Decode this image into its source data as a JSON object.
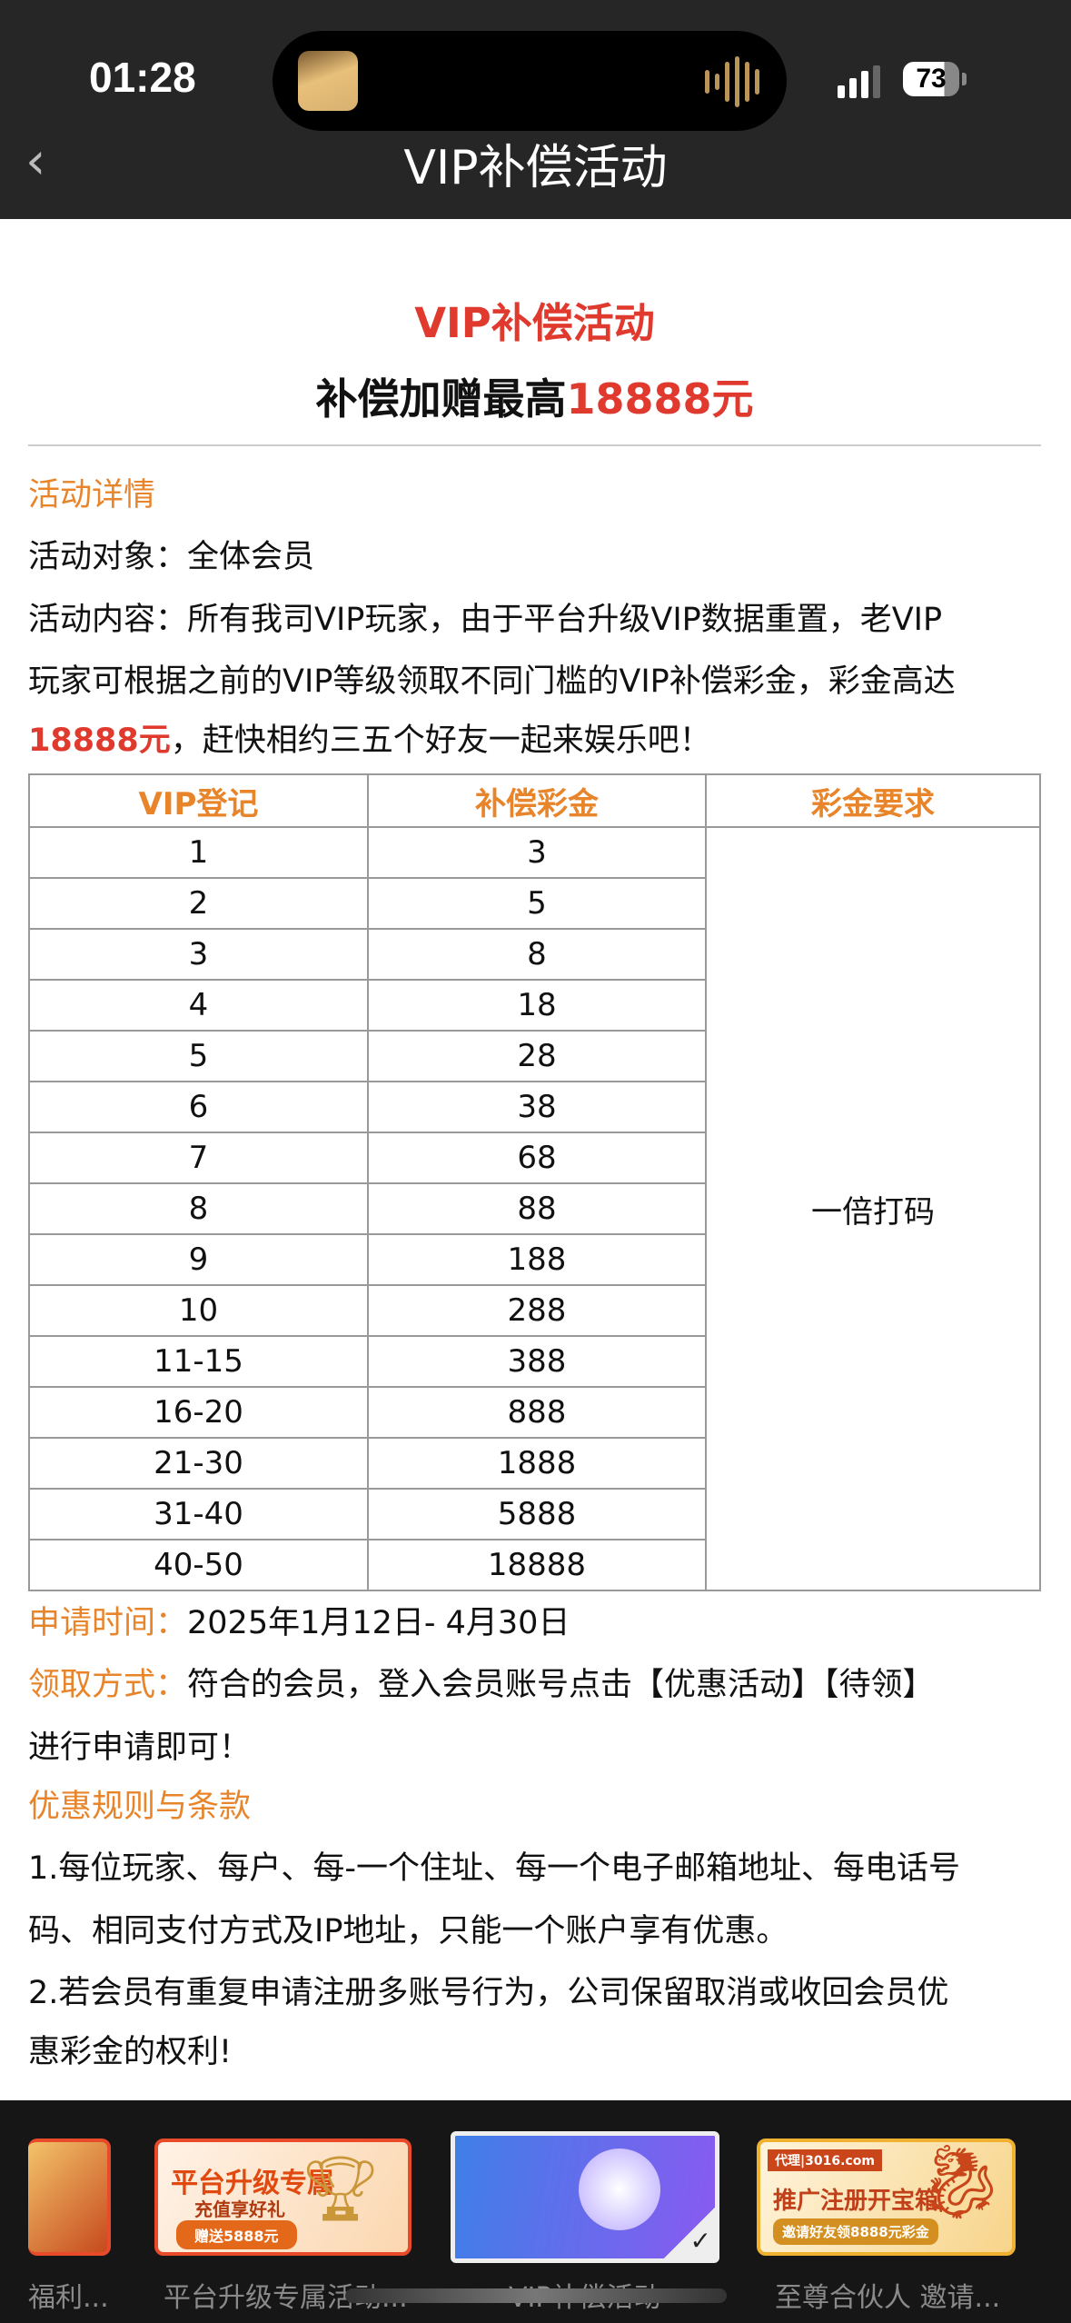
{
  "status_bar": {
    "time": "01:28",
    "battery": "73"
  },
  "nav": {
    "title": "VIP补偿活动",
    "back_icon": "chevron-left-icon"
  },
  "hero": {
    "title": "VIP补偿活动",
    "subtitle_prefix": "补偿加赠最高",
    "subtitle_amount": "18888元"
  },
  "details": {
    "heading": "活动详情",
    "target": "活动对象：全体会员",
    "content_line1": "活动内容：所有我司VIP玩家，由于平台升级VIP数据重置，老VIP",
    "content_line2": "玩家可根据之前的VIP等级领取不同门槛的VIP补偿彩金，彩金高达",
    "content_amount": "18888元",
    "content_line3": "，赶快相约三五个好友一起来娱乐吧！"
  },
  "table": {
    "headers": [
      "VIP登记",
      "补偿彩金",
      "彩金要求"
    ],
    "requirement": "一倍打码",
    "rows": [
      [
        "1",
        "3"
      ],
      [
        "2",
        "5"
      ],
      [
        "3",
        "8"
      ],
      [
        "4",
        "18"
      ],
      [
        "5",
        "28"
      ],
      [
        "6",
        "38"
      ],
      [
        "7",
        "68"
      ],
      [
        "8",
        "88"
      ],
      [
        "9",
        "188"
      ],
      [
        "10",
        "288"
      ],
      [
        "11-15",
        "388"
      ],
      [
        "16-20",
        "888"
      ],
      [
        "21-30",
        "1888"
      ],
      [
        "31-40",
        "5888"
      ],
      [
        "40-50",
        "18888"
      ]
    ]
  },
  "apply": {
    "time_label": "申请时间：",
    "time_value": "2025年1月12日- 4月30日",
    "method_label": "领取方式：",
    "method_line1": "符合的会员，登入会员账号点击【优惠活动】【待领】",
    "method_line2": "进行申请即可！"
  },
  "rules": {
    "heading": "优惠规则与条款",
    "lines": [
      "1.每位玩家、每户、每-一个住址、每一个电子邮箱地址、每电话号",
      "码、相同支付方式及IP地址，只能一个账户享有优惠。",
      "2.若会员有重复申请注册多账号行为，公司保留取消或收回会员优",
      "惠彩金的权利!"
    ]
  },
  "switcher": {
    "items": [
      {
        "label": "福利..."
      },
      {
        "label": "平台升级专属活动...",
        "card_title": "平台升级专属",
        "card_sub": "充值享好礼",
        "card_badge": "赠送5888元"
      },
      {
        "label": "VIP补偿活动",
        "selected": true
      },
      {
        "label": "至尊合伙人 邀请...",
        "card_title": "推广注册开宝箱",
        "card_sub": "邀请好友领8888元彩金",
        "card_brand": "代理|3016.com"
      }
    ]
  },
  "colors": {
    "accent_red": "#e03a2e",
    "accent_orange": "#e8842a",
    "header_bg": "#262626"
  }
}
